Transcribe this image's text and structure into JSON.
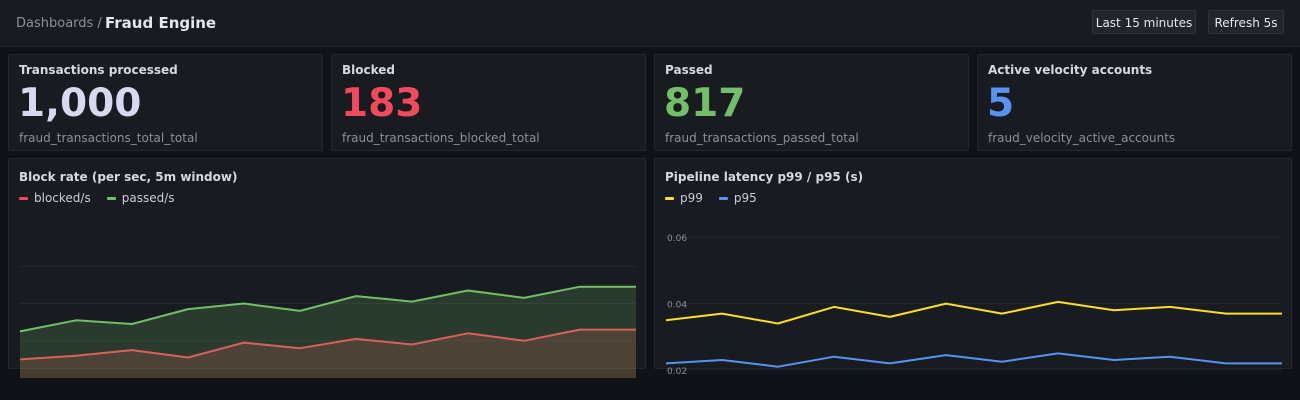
{
  "breadcrumb": {
    "parent": "Dashboards /",
    "title": "Fraud Engine"
  },
  "toolbar": {
    "time_range": "Last 15 minutes",
    "refresh": "Refresh 5s"
  },
  "stats": [
    {
      "title": "Transactions processed",
      "value": "1,000",
      "metric": "fraud_transactions_total_total",
      "color": "#d8d9f0"
    },
    {
      "title": "Blocked",
      "value": "183",
      "metric": "fraud_transactions_blocked_total",
      "color": "#f2495c"
    },
    {
      "title": "Passed",
      "value": "817",
      "metric": "fraud_transactions_passed_total",
      "color": "#73bf69"
    },
    {
      "title": "Active velocity accounts",
      "value": "5",
      "metric": "fraud_velocity_active_accounts",
      "color": "#5794f2"
    }
  ],
  "colors": {
    "red": "#f2495c",
    "green": "#73bf69",
    "yellow": "#fade2a",
    "blue": "#5794f2"
  },
  "chart_data": [
    {
      "type": "area",
      "title": "Block rate (per sec, 5m window)",
      "x": [
        0,
        1,
        2,
        3,
        4,
        5,
        6,
        7,
        8,
        9,
        10,
        11
      ],
      "ylim": [
        0,
        1.6
      ],
      "grid": true,
      "legend_placement": "top-left",
      "series": [
        {
          "name": "blocked/s",
          "color": "#f2495c",
          "values": [
            0.2,
            0.24,
            0.3,
            0.22,
            0.38,
            0.32,
            0.42,
            0.36,
            0.48,
            0.4,
            0.52,
            0.52
          ]
        },
        {
          "name": "passed/s",
          "color": "#73bf69",
          "values": [
            0.5,
            0.62,
            0.58,
            0.74,
            0.8,
            0.72,
            0.88,
            0.82,
            0.94,
            0.86,
            0.98,
            0.98
          ]
        }
      ]
    },
    {
      "type": "line",
      "title": "Pipeline latency p99 / p95 (s)",
      "x": [
        0,
        1,
        2,
        3,
        4,
        5,
        6,
        7,
        8,
        9,
        10,
        11
      ],
      "ylim": [
        0.02,
        0.07
      ],
      "yticks": [
        {
          "value": 0.02,
          "label": "0.02"
        },
        {
          "value": 0.04,
          "label": "0.04"
        },
        {
          "value": 0.06,
          "label": "0.06"
        }
      ],
      "grid": true,
      "legend_placement": "top-left",
      "series": [
        {
          "name": "p99",
          "color": "#fade2a",
          "values": [
            0.035,
            0.037,
            0.034,
            0.039,
            0.036,
            0.04,
            0.037,
            0.0405,
            0.038,
            0.039,
            0.037,
            0.037
          ]
        },
        {
          "name": "p95",
          "color": "#5794f2",
          "values": [
            0.022,
            0.023,
            0.021,
            0.024,
            0.022,
            0.0245,
            0.0225,
            0.025,
            0.023,
            0.024,
            0.022,
            0.022
          ]
        }
      ]
    }
  ]
}
